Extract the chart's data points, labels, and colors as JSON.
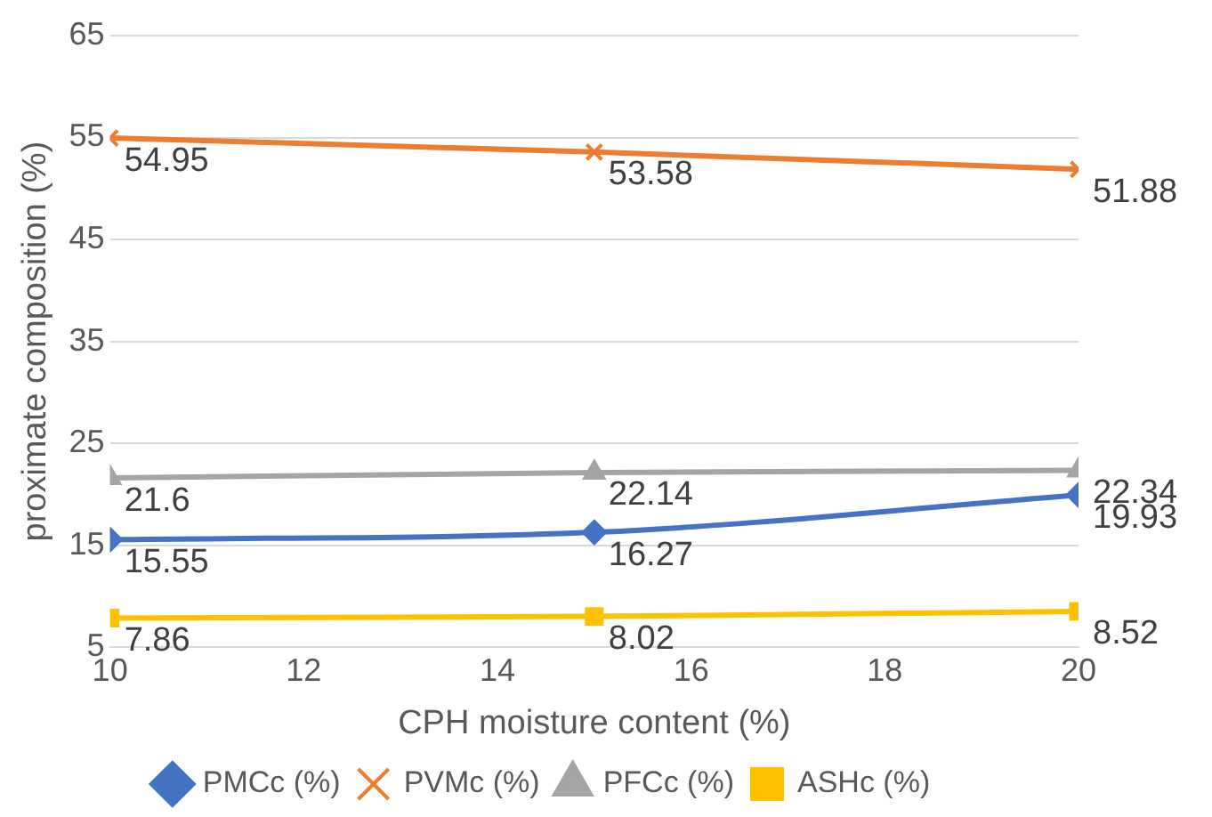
{
  "chart_data": {
    "type": "line",
    "xlabel": "CPH moisture content (%)",
    "ylabel": "proximate composition (%)",
    "x": [
      10,
      15,
      20
    ],
    "series": [
      {
        "name": "PMCc (%)",
        "color": "#4472c4",
        "values": [
          15.55,
          16.27,
          19.93
        ],
        "marker": "diamond"
      },
      {
        "name": "PVMc (%)",
        "color": "#ed7d31",
        "values": [
          54.95,
          53.58,
          51.88
        ],
        "marker": "cross"
      },
      {
        "name": "PFCc (%)",
        "color": "#a5a5a5",
        "values": [
          21.6,
          22.14,
          22.34
        ],
        "marker": "triangle"
      },
      {
        "name": "ASHc (%)",
        "color": "#ffc000",
        "values": [
          7.86,
          8.02,
          8.52
        ],
        "marker": "square"
      }
    ],
    "xlim": [
      10,
      20
    ],
    "xticks": [
      10,
      12,
      14,
      16,
      18,
      20
    ],
    "ylim": [
      5,
      65
    ],
    "yticks": [
      5,
      15,
      25,
      35,
      45,
      55,
      65
    ],
    "grid": "y",
    "legend": "bottom",
    "data_labels": true
  }
}
